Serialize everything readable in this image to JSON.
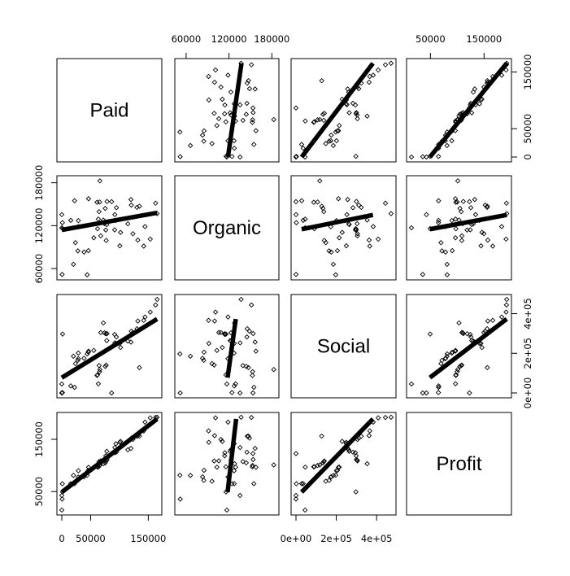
{
  "chart_data": {
    "type": "scatter",
    "variables": [
      "Paid",
      "Organic",
      "Social",
      "Profit"
    ],
    "axis_ticks": {
      "Paid": {
        "values": [
          0,
          50000,
          150000
        ],
        "labels": [
          "0",
          "50000",
          "150000"
        ]
      },
      "Organic": {
        "values": [
          60000,
          120000,
          180000
        ],
        "labels": [
          "60000",
          "120000",
          "180000"
        ]
      },
      "Social": {
        "values": [
          0,
          200000,
          400000
        ],
        "labels": [
          "0e+00",
          "2e+05",
          "4e+05"
        ]
      },
      "Profit": {
        "values": [
          50000,
          150000
        ],
        "labels": [
          "50000",
          "150000"
        ]
      }
    },
    "ranges": {
      "Paid": [
        0,
        165000
      ],
      "Organic": [
        51000,
        183000
      ],
      "Social": [
        0,
        472000
      ],
      "Profit": [
        14600,
        192000
      ]
    },
    "observations": {
      "Paid": [
        165349,
        162598,
        153442,
        144372,
        142107,
        131877,
        134615,
        130298,
        120543,
        123335,
        101913,
        100672,
        93864,
        91992,
        119943,
        114524,
        78014,
        94657,
        91749,
        86420,
        76254,
        78389,
        73995,
        67533,
        77044,
        64665,
        75329,
        72108,
        66052,
        65606,
        61994,
        61136,
        63409,
        55494,
        46427,
        46015,
        28664,
        44070,
        20230,
        38559,
        28754,
        27893,
        23641,
        15506,
        22178,
        1001,
        1315,
        0,
        543,
        0
      ],
      "Organic": [
        136898,
        151378,
        101146,
        118672,
        91392,
        99815,
        147199,
        145530,
        148719,
        108679,
        110595,
        91791,
        127320,
        135495,
        156547,
        122617,
        121598,
        145078,
        114176,
        153514,
        113867,
        153773,
        122783,
        105751,
        99282,
        139553,
        144136,
        127865,
        182646,
        153032,
        115641,
        152702,
        129220,
        103057,
        157694,
        85047,
        127056,
        51283,
        65947,
        82983,
        118546,
        84711,
        96190,
        127383,
        154806,
        124153,
        115816,
        135427,
        51743,
        116984
      ],
      "Social": [
        471784,
        443899,
        407935,
        383200,
        366168,
        362861,
        127717,
        323877,
        311613,
        304982,
        229161,
        249745,
        249839,
        252665,
        256513,
        261776,
        264346,
        282574,
        294920,
        0,
        298664,
        299737,
        303319,
        304768,
        140574,
        137962,
        134051,
        353184,
        118148,
        107138,
        91131,
        88219,
        46086,
        214635,
        210797,
        205518,
        201127,
        197029,
        185265,
        174999,
        172795,
        164470,
        148001,
        35534,
        28335,
        1904,
        297114,
        0,
        0,
        45173
      ],
      "Profit": [
        192262,
        191792,
        191050,
        182902,
        166188,
        156991,
        156123,
        155753,
        152212,
        149760,
        146122,
        144259,
        141586,
        134307,
        132603,
        129917,
        126993,
        125370,
        124267,
        122776,
        118474,
        111313,
        110352,
        108734,
        108552,
        107404,
        105008,
        103282,
        101004,
        99937,
        97484,
        97427,
        96779,
        96712,
        96479,
        90708,
        89949,
        81229,
        81006,
        78240,
        77798,
        71498,
        69759,
        65200,
        65200,
        64926,
        49491,
        42560,
        35673,
        14681
      ]
    },
    "fit_lines": [
      {
        "y": "Organic",
        "x": "Paid",
        "from": [
          0,
          114000
        ],
        "to": [
          165349,
          138000
        ]
      },
      {
        "y": "Social",
        "x": "Paid",
        "from": [
          0,
          77000
        ],
        "to": [
          165349,
          373000
        ]
      },
      {
        "y": "Profit",
        "x": "Paid",
        "from": [
          0,
          49000
        ],
        "to": [
          165349,
          189000
        ]
      },
      {
        "y": "Paid",
        "x": "Organic",
        "from": [
          118500,
          0
        ],
        "to": [
          137500,
          165349
        ]
      },
      {
        "y": "Social",
        "x": "Organic",
        "from": [
          118000,
          77000
        ],
        "to": [
          129500,
          373000
        ]
      },
      {
        "y": "Profit",
        "x": "Organic",
        "from": [
          118000,
          49000
        ],
        "to": [
          130000,
          189000
        ]
      },
      {
        "y": "Paid",
        "x": "Social",
        "from": [
          28000,
          0
        ],
        "to": [
          382000,
          165349
        ]
      },
      {
        "y": "Organic",
        "x": "Social",
        "from": [
          28000,
          115000
        ],
        "to": [
          382000,
          135000
        ]
      },
      {
        "y": "Profit",
        "x": "Social",
        "from": [
          28000,
          49000
        ],
        "to": [
          382000,
          189000
        ]
      },
      {
        "y": "Paid",
        "x": "Profit",
        "from": [
          49000,
          0
        ],
        "to": [
          192262,
          165349
        ]
      },
      {
        "y": "Organic",
        "x": "Profit",
        "from": [
          49000,
          115000
        ],
        "to": [
          192262,
          135000
        ]
      },
      {
        "y": "Social",
        "x": "Profit",
        "from": [
          49000,
          77000
        ],
        "to": [
          192262,
          373000
        ]
      }
    ],
    "title": "",
    "grid": false,
    "legend": "none"
  }
}
